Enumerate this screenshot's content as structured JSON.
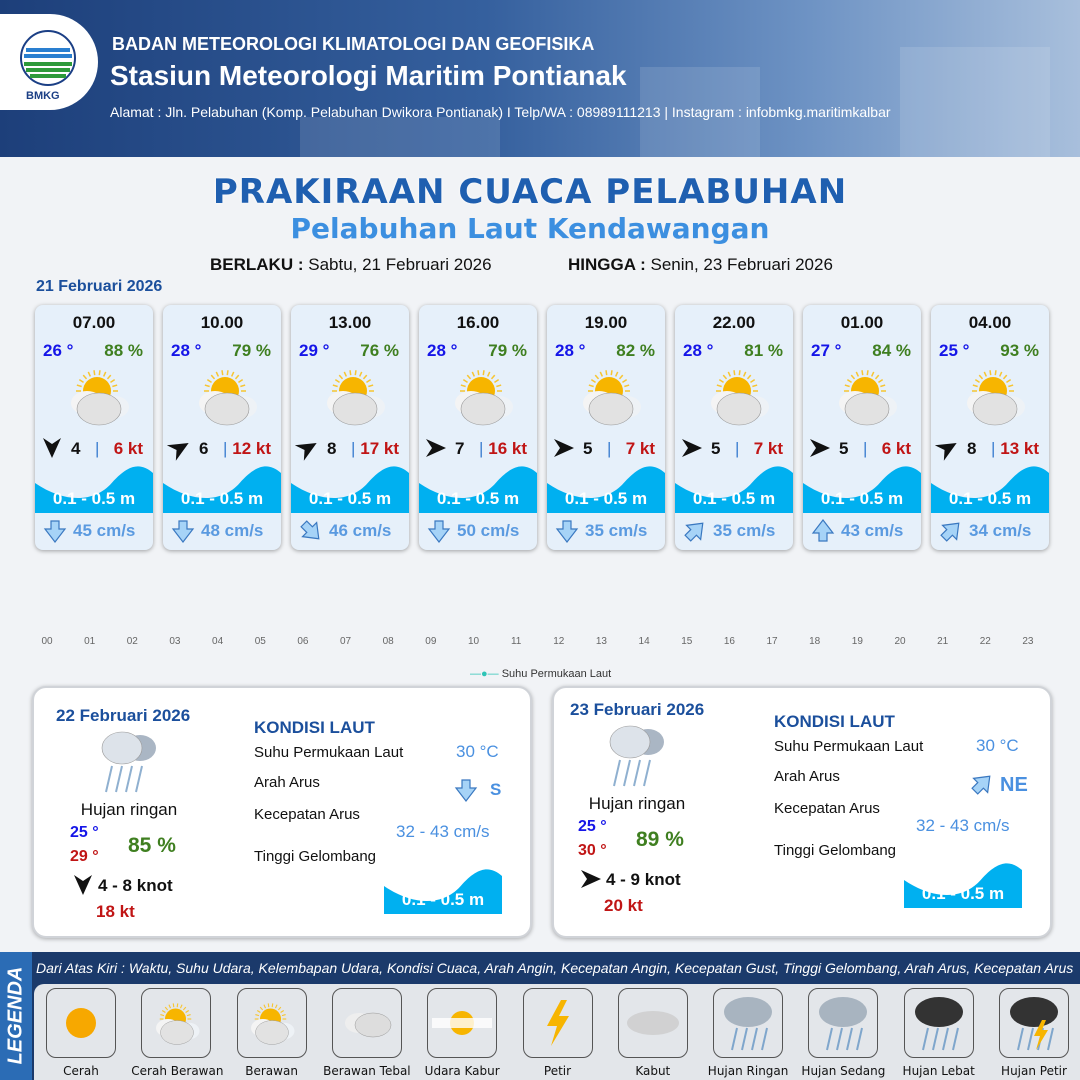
{
  "header": {
    "org": "BADAN METEOROLOGI KLIMATOLOGI DAN GEOFISIKA",
    "station": "Stasiun Meteorologi Maritim Pontianak",
    "address": "Alamat : Jln. Pelabuhan (Komp. Pelabuhan Dwikora Pontianak) I Telp/WA : 08989111213 | Instagram : infobmkg.maritimkalbar",
    "logo_text": "BMKG"
  },
  "title": "PRAKIRAAN CUACA PELABUHAN",
  "subtitle": "Pelabuhan Laut Kendawangan",
  "validity": {
    "from_label": "BERLAKU :",
    "from": "Sabtu, 21 Februari 2026",
    "to_label": "HINGGA :",
    "to": "Senin, 23 Februari 2026"
  },
  "day1": {
    "date": "21 Februari 2026",
    "forecasts": [
      {
        "time": "07.00",
        "temp": "26 °",
        "hum": "88 %",
        "weather": "Berawan",
        "wind_dir_deg": 180,
        "wind": "4",
        "gust": "6 kt",
        "wave": "0.1 - 0.5 m",
        "current_dir_deg": 180,
        "current": "45 cm/s"
      },
      {
        "time": "10.00",
        "temp": "28 °",
        "hum": "79 %",
        "weather": "Berawan",
        "wind_dir_deg": 60,
        "wind": "6",
        "gust": "12 kt",
        "wave": "0.1 - 0.5 m",
        "current_dir_deg": 180,
        "current": "48 cm/s"
      },
      {
        "time": "13.00",
        "temp": "29 °",
        "hum": "76 %",
        "weather": "Berawan",
        "wind_dir_deg": 60,
        "wind": "8",
        "gust": "17 kt",
        "wave": "0.1 - 0.5 m",
        "current_dir_deg": 135,
        "current": "46 cm/s"
      },
      {
        "time": "16.00",
        "temp": "28 °",
        "hum": "79 %",
        "weather": "Berawan",
        "wind_dir_deg": 90,
        "wind": "7",
        "gust": "16 kt",
        "wave": "0.1 - 0.5 m",
        "current_dir_deg": 180,
        "current": "50 cm/s"
      },
      {
        "time": "19.00",
        "temp": "28 °",
        "hum": "82 %",
        "weather": "Berawan",
        "wind_dir_deg": 90,
        "wind": "5",
        "gust": "7 kt",
        "wave": "0.1 - 0.5 m",
        "current_dir_deg": 180,
        "current": "35 cm/s"
      },
      {
        "time": "22.00",
        "temp": "28 °",
        "hum": "81 %",
        "weather": "Berawan",
        "wind_dir_deg": 90,
        "wind": "5",
        "gust": "7 kt",
        "wave": "0.1 - 0.5 m",
        "current_dir_deg": 45,
        "current": "35 cm/s"
      },
      {
        "time": "01.00",
        "temp": "27 °",
        "hum": "84 %",
        "weather": "Berawan",
        "wind_dir_deg": 90,
        "wind": "5",
        "gust": "6 kt",
        "wave": "0.1 - 0.5 m",
        "current_dir_deg": 0,
        "current": "43 cm/s"
      },
      {
        "time": "04.00",
        "temp": "25 °",
        "hum": "93 %",
        "weather": "Berawan",
        "wind_dir_deg": 60,
        "wind": "8",
        "gust": "13 kt",
        "wave": "0.1 - 0.5 m",
        "current_dir_deg": 45,
        "current": "34 cm/s"
      }
    ]
  },
  "sst_chart": {
    "x_ticks": [
      "00",
      "01",
      "02",
      "03",
      "04",
      "05",
      "06",
      "07",
      "08",
      "09",
      "10",
      "11",
      "12",
      "13",
      "14",
      "15",
      "16",
      "17",
      "18",
      "19",
      "20",
      "21",
      "22",
      "23"
    ],
    "legend": "Suhu Permukaan Laut",
    "series_color": "#2ec4b6"
  },
  "days": [
    {
      "date": "22 Februari 2026",
      "weather": "Hujan ringan",
      "tmin": "25 °",
      "tmax": "29 °",
      "hum": "85 %",
      "wind_dir_deg": 180,
      "wind": "4  - 8 knot",
      "gust": "18 kt",
      "kondisi": "KONDISI LAUT",
      "sst_label": "Suhu Permukaan Laut",
      "sst": "30 °C",
      "arus_label": "Arah Arus",
      "arus_dir_deg": 180,
      "arus": "S",
      "kec_label": "Kecepatan Arus",
      "kec": "32 - 43 cm/s",
      "tg_label": "Tinggi Gelombang",
      "wave": "0.1 - 0.5 m"
    },
    {
      "date": "23 Februari 2026",
      "weather": "Hujan ringan",
      "tmin": "25 °",
      "tmax": "30 °",
      "hum": "89 %",
      "wind_dir_deg": 90,
      "wind": "4  - 9 knot",
      "gust": "20 kt",
      "kondisi": "KONDISI LAUT",
      "sst_label": "Suhu Permukaan Laut",
      "sst": "30 °C",
      "arus_label": "Arah Arus",
      "arus_dir_deg": 45,
      "arus": "NE",
      "kec_label": "Kecepatan Arus",
      "kec": "32 - 43 cm/s",
      "tg_label": "Tinggi Gelombang",
      "wave": "0.1 - 0.5 m"
    }
  ],
  "legend": {
    "title": "LEGENDA",
    "description": "Dari Atas Kiri : Waktu, Suhu Udara, Kelembapan Udara, Kondisi Cuaca, Arah Angin, Kecepatan Angin, Kecepatan Gust, Tinggi Gelombang, Arah Arus, Kecepatan Arus",
    "items": [
      {
        "label": "Cerah",
        "icon": "sun"
      },
      {
        "label": "Cerah Berawan",
        "icon": "sun-cloud"
      },
      {
        "label": "Berawan",
        "icon": "cloud-sun"
      },
      {
        "label": "Berawan Tebal",
        "icon": "clouds"
      },
      {
        "label": "Udara Kabur",
        "icon": "haze"
      },
      {
        "label": "Petir",
        "icon": "lightning"
      },
      {
        "label": "Kabut",
        "icon": "fog"
      },
      {
        "label": "Hujan Ringan",
        "icon": "light-rain"
      },
      {
        "label": "Hujan Sedang",
        "icon": "rain"
      },
      {
        "label": "Hujan Lebat",
        "icon": "heavy-rain"
      },
      {
        "label": "Hujan Petir",
        "icon": "thunderstorm"
      }
    ]
  },
  "colors": {
    "header": "#1d3f7a",
    "wave": "#00b0f0",
    "temp": "#1515e8",
    "humidity": "#3f7f20",
    "gust": "#c01515",
    "title": "#1f5fb0"
  }
}
